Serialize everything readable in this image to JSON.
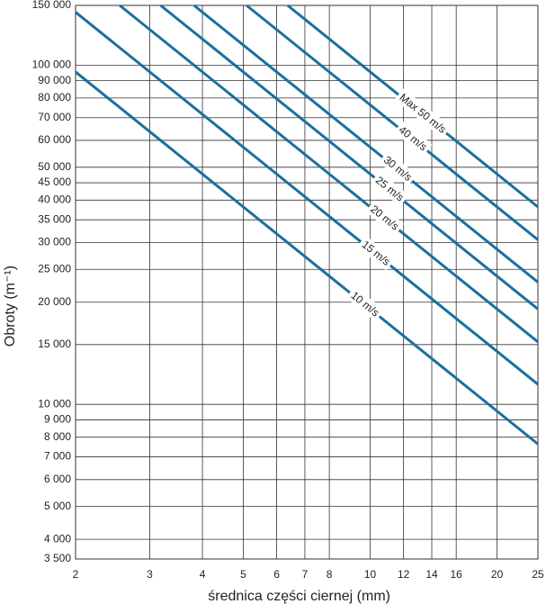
{
  "chart_data": {
    "type": "line",
    "x_label": "średnica części ciernej (mm)",
    "y_label": "Obroty (m⁻¹)",
    "xscale": "log",
    "yscale": "log",
    "grid": true,
    "color": "#1a6fa0",
    "xlim": [
      2,
      25
    ],
    "ylim": [
      3500,
      150000
    ],
    "xticks": [
      2,
      3,
      4,
      5,
      6,
      7,
      8,
      10,
      12,
      14,
      16,
      20,
      25
    ],
    "yticks": [
      {
        "value": 3500,
        "label": "3 500"
      },
      {
        "value": 4000,
        "label": "4 000"
      },
      {
        "value": 5000,
        "label": "5 000"
      },
      {
        "value": 6000,
        "label": "6 000"
      },
      {
        "value": 7000,
        "label": "7 000"
      },
      {
        "value": 8000,
        "label": "8 000"
      },
      {
        "value": 9000,
        "label": "9 000"
      },
      {
        "value": 10000,
        "label": "10 000"
      },
      {
        "value": 15000,
        "label": "15 000"
      },
      {
        "value": 20000,
        "label": "20 000"
      },
      {
        "value": 25000,
        "label": "25 000"
      },
      {
        "value": 30000,
        "label": "30 000"
      },
      {
        "value": 35000,
        "label": "35 000"
      },
      {
        "value": 40000,
        "label": "40 000"
      },
      {
        "value": 45000,
        "label": "45 000"
      },
      {
        "value": 50000,
        "label": "50 000"
      },
      {
        "value": 60000,
        "label": "60 000"
      },
      {
        "value": 70000,
        "label": "70 000"
      },
      {
        "value": 80000,
        "label": "80 000"
      },
      {
        "value": 90000,
        "label": "90 000"
      },
      {
        "value": 100000,
        "label": "100 000"
      },
      {
        "value": 150000,
        "label": "150 000"
      }
    ],
    "series": [
      {
        "name": "10 m/s",
        "x": [
          2,
          25
        ],
        "values": [
          95493,
          7639
        ]
      },
      {
        "name": "15 m/s",
        "x": [
          2,
          25
        ],
        "values": [
          143239,
          11459
        ]
      },
      {
        "name": "20 m/s",
        "x": [
          2.546,
          25
        ],
        "values": [
          150000,
          15279
        ]
      },
      {
        "name": "25 m/s",
        "x": [
          3.183,
          25
        ],
        "values": [
          150000,
          19099
        ]
      },
      {
        "name": "30 m/s",
        "x": [
          3.82,
          25
        ],
        "values": [
          150000,
          22918
        ]
      },
      {
        "name": "40 m/s",
        "x": [
          5.09,
          25
        ],
        "values": [
          150000,
          30558
        ]
      },
      {
        "name": "Max 50 m/s",
        "x": [
          6.37,
          25
        ],
        "values": [
          150000,
          38197
        ]
      }
    ]
  }
}
